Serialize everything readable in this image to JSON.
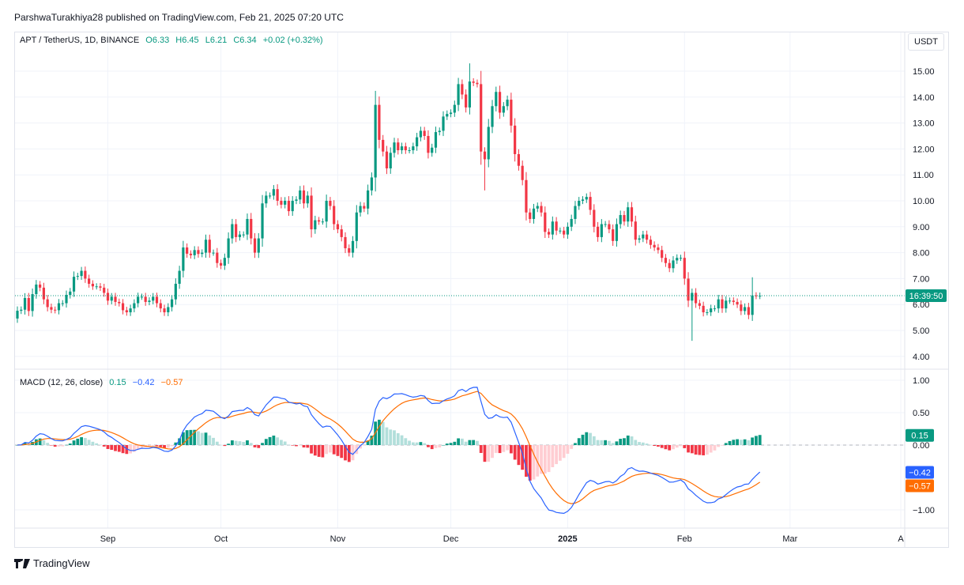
{
  "publisher": "ParshwaTurakhiya28 published on TradingView.com, Feb 21, 2025 07:20 UTC",
  "legend": {
    "symbol": "APT / TetherUS, 1D, BINANCE",
    "open": "O6.33",
    "high": "H6.45",
    "low": "L6.21",
    "close": "C6.34",
    "change": "+0.02 (+0.32%)"
  },
  "currency_button": "USDT",
  "countdown": "16:39:50",
  "macd_legend": {
    "title": "MACD (12, 26, close)",
    "hist": "0.15",
    "macd": "−0.42",
    "signal": "−0.57"
  },
  "footer": {
    "brand": "TradingView"
  },
  "colors": {
    "up": "#089981",
    "down": "#f23645",
    "macd": "#2962ff",
    "signal": "#ff6d00",
    "hist_up_light": "#b2dfdb",
    "hist_down_light": "#ffcdd2"
  },
  "chart_data": [
    {
      "type": "candlestick",
      "title": "APT / TetherUS, 1D, BINANCE",
      "start_date": "2024-08-08",
      "interval": "1D",
      "close": [
        5.76,
        5.8,
        6.25,
        5.75,
        6.4,
        6.77,
        6.65,
        6.2,
        5.9,
        5.8,
        5.78,
        6.05,
        6.05,
        6.37,
        6.5,
        7.07,
        7.1,
        7.3,
        7.0,
        6.8,
        6.7,
        6.7,
        6.65,
        6.45,
        6.15,
        6.3,
        6.1,
        6.05,
        5.78,
        5.7,
        5.85,
        6.05,
        6.3,
        6.3,
        6.1,
        6.15,
        6.3,
        6.05,
        5.85,
        5.7,
        5.9,
        6.2,
        6.8,
        7.3,
        8.2,
        7.96,
        7.9,
        8.1,
        7.95,
        8.0,
        8.5,
        8.0,
        8.0,
        7.6,
        7.5,
        7.8,
        8.55,
        9.1,
        8.6,
        8.7,
        8.7,
        9.3,
        8.55,
        8.0,
        8.55,
        9.9,
        10.2,
        10.2,
        10.45,
        10.0,
        9.85,
        10.0,
        9.6,
        10.0,
        10.05,
        10.4,
        9.9,
        10.2,
        8.9,
        9.25,
        9.2,
        9.2,
        10.0,
        9.8,
        9.1,
        8.9,
        8.6,
        8.17,
        8.0,
        8.45,
        9.55,
        9.8,
        9.7,
        10.4,
        10.9,
        13.7,
        12.35,
        11.9,
        11.25,
        11.85,
        12.25,
        11.95,
        12.1,
        11.95,
        11.95,
        12.1,
        12.45,
        12.7,
        12.5,
        11.85,
        12.05,
        12.65,
        12.7,
        13.25,
        13.35,
        13.4,
        13.7,
        14.5,
        14.1,
        13.6,
        14.6,
        14.55,
        14.5,
        11.9,
        11.6,
        12.85,
        13.65,
        14.2,
        13.4,
        13.65,
        13.9,
        12.9,
        11.8,
        11.35,
        10.8,
        9.55,
        9.3,
        9.7,
        9.8,
        9.55,
        8.8,
        8.7,
        9.2,
        8.85,
        8.85,
        8.7,
        9.0,
        9.3,
        9.8,
        10.0,
        10.05,
        10.15,
        9.65,
        9.0,
        8.6,
        9.1,
        9.1,
        8.9,
        8.45,
        9.1,
        9.45,
        9.2,
        9.75,
        9.2,
        8.5,
        8.55,
        8.7,
        8.5,
        8.3,
        8.2,
        8.1,
        7.8,
        7.6,
        7.4,
        7.7,
        7.8,
        7.8,
        7.0,
        6.15,
        6.45,
        6.05,
        5.95,
        5.7,
        5.7,
        5.85,
        5.85,
        6.2,
        5.85,
        6.15,
        6.15,
        6.1,
        6.0,
        5.75,
        5.9,
        5.6,
        6.35,
        6.33,
        6.34
      ],
      "notable_wicks": [
        {
          "date": "2024-12-06",
          "high": 15.3
        },
        {
          "date": "2024-12-10",
          "low": 10.4
        },
        {
          "date": "2025-02-03",
          "low": 4.6
        },
        {
          "date": "2025-02-19",
          "high": 7.05
        }
      ],
      "last_price": 6.34,
      "y_axis": {
        "ticks": [
          "15.00",
          "14.00",
          "13.00",
          "12.00",
          "11.00",
          "10.00",
          "9.00",
          "8.00",
          "7.00",
          "6.00",
          "5.00",
          "4.00"
        ],
        "range": [
          3.6,
          16.5
        ]
      },
      "x_axis": {
        "ticks": [
          {
            "label": "Sep",
            "date": "2024-09-01"
          },
          {
            "label": "Oct",
            "date": "2024-10-01"
          },
          {
            "label": "Nov",
            "date": "2024-11-01"
          },
          {
            "label": "Dec",
            "date": "2024-12-01"
          },
          {
            "label": "2025",
            "date": "2025-01-01",
            "bold": true
          },
          {
            "label": "Feb",
            "date": "2025-02-01"
          },
          {
            "label": "Mar",
            "date": "2025-03-01"
          },
          {
            "label": "A",
            "date": "2025-04-01"
          }
        ]
      },
      "grid": true
    },
    {
      "type": "macd",
      "params": {
        "fast": 12,
        "slow": 26,
        "signal": 9,
        "source": "close"
      },
      "last": {
        "histogram": 0.15,
        "macd": -0.42,
        "signal": -0.57
      },
      "y_axis": {
        "ticks": [
          "1.00",
          "0.50",
          "0.00",
          "−1.00"
        ],
        "range": [
          -1.25,
          1.1
        ]
      },
      "grid": true
    }
  ]
}
